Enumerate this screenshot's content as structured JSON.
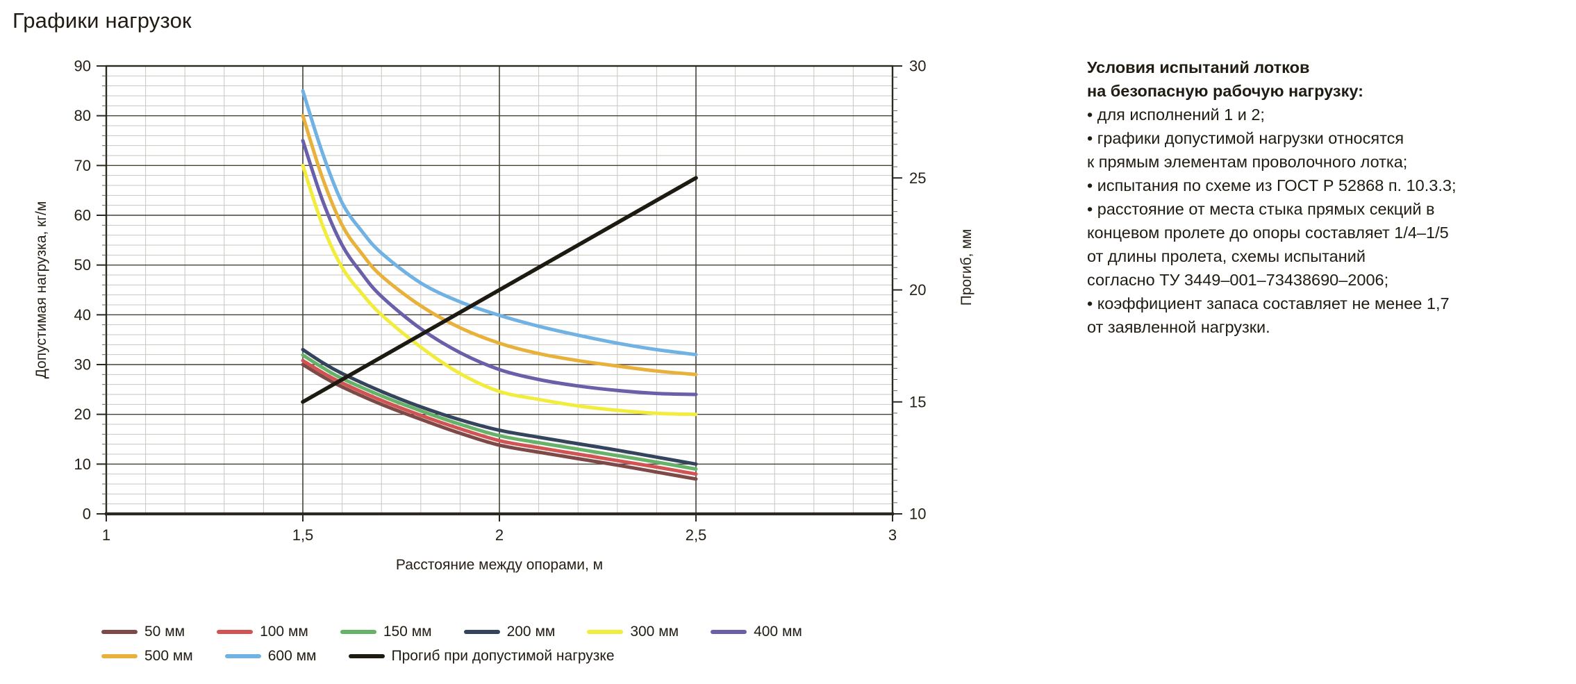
{
  "title": "Графики нагрузок",
  "chart_data": {
    "type": "line",
    "title": "Графики нагрузок",
    "x_axis": {
      "label": "Расстояние между опорами, м",
      "min": 1,
      "max": 3,
      "minor_step": 0.1,
      "major_ticks": [
        {
          "value": 1,
          "label": "1"
        },
        {
          "value": 1.5,
          "label": "1,5"
        },
        {
          "value": 2,
          "label": "2"
        },
        {
          "value": 2.5,
          "label": "2,5"
        },
        {
          "value": 3,
          "label": "3"
        }
      ]
    },
    "y_left": {
      "label": "Допустимая нагрузка, кг/м",
      "min": 0,
      "max": 90,
      "major_step": 10,
      "minor_step": 2
    },
    "y_right": {
      "label": "Прогиб, мм",
      "min": 10,
      "max": 30,
      "major_step": 5,
      "minor_step": 0.5
    },
    "grid": {
      "minor_color": "#c9c6c0",
      "major_color": "#454135",
      "frame_color": "#2b2820",
      "background": "#ffffff"
    },
    "legend_position": "bottom",
    "series": [
      {
        "name": "50 мм",
        "color": "#7d4a47",
        "axis": "left",
        "points": [
          [
            1.5,
            30
          ],
          [
            1.55,
            27.6
          ],
          [
            1.6,
            25.5
          ],
          [
            1.7,
            22
          ],
          [
            1.8,
            19
          ],
          [
            1.9,
            16.2
          ],
          [
            2,
            13.8
          ],
          [
            2.1,
            12.4
          ],
          [
            2.2,
            11.1
          ],
          [
            2.3,
            9.8
          ],
          [
            2.4,
            8.4
          ],
          [
            2.5,
            7
          ]
        ]
      },
      {
        "name": "100 мм",
        "color": "#d15353",
        "axis": "left",
        "points": [
          [
            1.5,
            30.8
          ],
          [
            1.55,
            28.4
          ],
          [
            1.6,
            26.3
          ],
          [
            1.7,
            22.8
          ],
          [
            1.8,
            19.8
          ],
          [
            1.9,
            17.1
          ],
          [
            2,
            14.7
          ],
          [
            2.1,
            13.3
          ],
          [
            2.2,
            12
          ],
          [
            2.3,
            10.7
          ],
          [
            2.4,
            9.4
          ],
          [
            2.5,
            8
          ]
        ]
      },
      {
        "name": "150 мм",
        "color": "#65b268",
        "axis": "left",
        "points": [
          [
            1.5,
            31.9
          ],
          [
            1.55,
            29.4
          ],
          [
            1.6,
            27.2
          ],
          [
            1.7,
            23.7
          ],
          [
            1.8,
            20.7
          ],
          [
            1.9,
            18
          ],
          [
            2,
            15.7
          ],
          [
            2.1,
            14.3
          ],
          [
            2.2,
            13
          ],
          [
            2.3,
            11.7
          ],
          [
            2.4,
            10.4
          ],
          [
            2.5,
            9
          ]
        ]
      },
      {
        "name": "200 мм",
        "color": "#33445c",
        "axis": "left",
        "points": [
          [
            1.5,
            33
          ],
          [
            1.55,
            30.4
          ],
          [
            1.6,
            28.2
          ],
          [
            1.7,
            24.6
          ],
          [
            1.8,
            21.5
          ],
          [
            1.9,
            18.9
          ],
          [
            2,
            16.8
          ],
          [
            2.1,
            15.4
          ],
          [
            2.2,
            14.1
          ],
          [
            2.3,
            12.8
          ],
          [
            2.4,
            11.4
          ],
          [
            2.5,
            10
          ]
        ]
      },
      {
        "name": "300 мм",
        "color": "#f2ec3d",
        "axis": "left",
        "points": [
          [
            1.5,
            70
          ],
          [
            1.55,
            58
          ],
          [
            1.6,
            49.5
          ],
          [
            1.65,
            44.3
          ],
          [
            1.7,
            40
          ],
          [
            1.8,
            33.5
          ],
          [
            1.9,
            28.2
          ],
          [
            2,
            24.6
          ],
          [
            2.1,
            23
          ],
          [
            2.2,
            21.7
          ],
          [
            2.3,
            20.8
          ],
          [
            2.4,
            20.2
          ],
          [
            2.5,
            20
          ]
        ]
      },
      {
        "name": "400 мм",
        "color": "#6a5fa9",
        "axis": "left",
        "points": [
          [
            1.5,
            75
          ],
          [
            1.55,
            63
          ],
          [
            1.6,
            54
          ],
          [
            1.65,
            48.3
          ],
          [
            1.7,
            43.7
          ],
          [
            1.8,
            37.2
          ],
          [
            1.9,
            32.4
          ],
          [
            2,
            29
          ],
          [
            2.1,
            27
          ],
          [
            2.2,
            25.7
          ],
          [
            2.3,
            24.8
          ],
          [
            2.4,
            24.2
          ],
          [
            2.5,
            24
          ]
        ]
      },
      {
        "name": "500 мм",
        "color": "#e8b13c",
        "axis": "left",
        "points": [
          [
            1.5,
            80
          ],
          [
            1.55,
            67.5
          ],
          [
            1.6,
            58
          ],
          [
            1.65,
            52.3
          ],
          [
            1.7,
            47.8
          ],
          [
            1.8,
            41.8
          ],
          [
            1.9,
            37.4
          ],
          [
            2,
            34.3
          ],
          [
            2.1,
            32.2
          ],
          [
            2.2,
            30.8
          ],
          [
            2.3,
            29.7
          ],
          [
            2.4,
            28.7
          ],
          [
            2.5,
            28
          ]
        ]
      },
      {
        "name": "600 мм",
        "color": "#70b2e4",
        "axis": "left",
        "points": [
          [
            1.5,
            85
          ],
          [
            1.55,
            72.5
          ],
          [
            1.6,
            62.5
          ],
          [
            1.65,
            56.8
          ],
          [
            1.7,
            52.4
          ],
          [
            1.8,
            46.4
          ],
          [
            1.9,
            42.6
          ],
          [
            2,
            39.9
          ],
          [
            2.1,
            37.7
          ],
          [
            2.2,
            35.9
          ],
          [
            2.3,
            34.3
          ],
          [
            2.4,
            33
          ],
          [
            2.5,
            32
          ]
        ]
      },
      {
        "name": "Прогиб при допустимой нагрузке",
        "color": "#1d1a11",
        "axis": "right",
        "points": [
          [
            1.5,
            15
          ],
          [
            2.5,
            25
          ]
        ]
      }
    ],
    "legend_rows": [
      [
        0,
        1,
        2,
        3,
        4,
        5
      ],
      [
        6,
        7,
        8
      ]
    ]
  },
  "notes": {
    "lines": [
      {
        "text": "Условия испытаний лотков",
        "bold": true
      },
      {
        "text": "на безопасную рабочую нагрузку:",
        "bold": true
      },
      {
        "text": "• для исполнений 1 и 2;",
        "bold": false
      },
      {
        "text": "• графики допустимой нагрузки относятся",
        "bold": false
      },
      {
        "text": "к прямым элементам проволочного лотка;",
        "bold": false
      },
      {
        "text": "• испытания по схеме из ГОСТ Р 52868 п. 10.3.3;",
        "bold": false
      },
      {
        "text": "• расстояние от места стыка прямых секций в",
        "bold": false
      },
      {
        "text": "концевом пролете до опоры составляет 1/4–1/5",
        "bold": false
      },
      {
        "text": "от длины пролета, схемы испытаний",
        "bold": false
      },
      {
        "text": "согласно ТУ 3449–001–73438690–2006;",
        "bold": false
      },
      {
        "text": "• коэффициент запаса составляет не менее 1,7",
        "bold": false
      },
      {
        "text": "от заявленной нагрузки.",
        "bold": false
      }
    ]
  }
}
